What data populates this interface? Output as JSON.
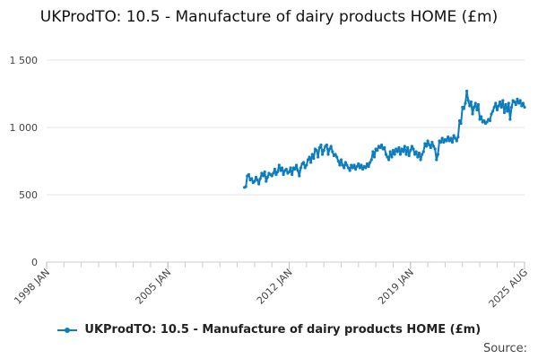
{
  "chart_data": {
    "type": "line",
    "title": "UKProdTO: 10.5 - Manufacture of dairy products HOME (£m)",
    "xlabel": "",
    "ylabel": "",
    "ylim": [
      0,
      1500
    ],
    "yticks": [
      0,
      500,
      1000,
      1500
    ],
    "ytick_labels": [
      "0",
      "500",
      "1 000",
      "1 500"
    ],
    "xlim": [
      "1998-01",
      "2025-08"
    ],
    "xtick_labels": [
      "1998 JAN",
      "2005 JAN",
      "2012 JAN",
      "2019 JAN",
      "2025 AUG"
    ],
    "grid": "horizontal",
    "legend_position": "bottom",
    "color": "#0d7dbd",
    "series": [
      {
        "name": "UKProdTO: 10.5 - Manufacture of dairy products HOME (£m)",
        "points": [
          [
            "2009-06",
            555
          ],
          [
            "2009-07",
            560
          ],
          [
            "2009-08",
            640
          ],
          [
            "2009-09",
            650
          ],
          [
            "2009-10",
            610
          ],
          [
            "2009-11",
            620
          ],
          [
            "2009-12",
            590
          ],
          [
            "2010-01",
            600
          ],
          [
            "2010-02",
            630
          ],
          [
            "2010-03",
            610
          ],
          [
            "2010-04",
            580
          ],
          [
            "2010-05",
            620
          ],
          [
            "2010-06",
            660
          ],
          [
            "2010-07",
            640
          ],
          [
            "2010-08",
            670
          ],
          [
            "2010-09",
            600
          ],
          [
            "2010-10",
            630
          ],
          [
            "2010-11",
            660
          ],
          [
            "2010-12",
            650
          ],
          [
            "2011-01",
            640
          ],
          [
            "2011-02",
            660
          ],
          [
            "2011-03",
            690
          ],
          [
            "2011-04",
            650
          ],
          [
            "2011-05",
            670
          ],
          [
            "2011-06",
            720
          ],
          [
            "2011-07",
            680
          ],
          [
            "2011-08",
            700
          ],
          [
            "2011-09",
            650
          ],
          [
            "2011-10",
            680
          ],
          [
            "2011-11",
            690
          ],
          [
            "2011-12",
            660
          ],
          [
            "2012-01",
            670
          ],
          [
            "2012-02",
            700
          ],
          [
            "2012-03",
            650
          ],
          [
            "2012-04",
            700
          ],
          [
            "2012-05",
            690
          ],
          [
            "2012-06",
            720
          ],
          [
            "2012-07",
            680
          ],
          [
            "2012-08",
            640
          ],
          [
            "2012-09",
            700
          ],
          [
            "2012-10",
            730
          ],
          [
            "2012-11",
            740
          ],
          [
            "2012-12",
            700
          ],
          [
            "2013-01",
            720
          ],
          [
            "2013-02",
            760
          ],
          [
            "2013-03",
            780
          ],
          [
            "2013-04",
            740
          ],
          [
            "2013-05",
            800
          ],
          [
            "2013-06",
            770
          ],
          [
            "2013-07",
            840
          ],
          [
            "2013-08",
            830
          ],
          [
            "2013-09",
            780
          ],
          [
            "2013-10",
            850
          ],
          [
            "2013-11",
            870
          ],
          [
            "2013-12",
            800
          ],
          [
            "2014-01",
            830
          ],
          [
            "2014-02",
            860
          ],
          [
            "2014-03",
            870
          ],
          [
            "2014-04",
            800
          ],
          [
            "2014-05",
            840
          ],
          [
            "2014-06",
            860
          ],
          [
            "2014-07",
            820
          ],
          [
            "2014-08",
            790
          ],
          [
            "2014-09",
            800
          ],
          [
            "2014-10",
            780
          ],
          [
            "2014-11",
            750
          ],
          [
            "2014-12",
            720
          ],
          [
            "2015-01",
            760
          ],
          [
            "2015-02",
            720
          ],
          [
            "2015-03",
            700
          ],
          [
            "2015-04",
            740
          ],
          [
            "2015-05",
            720
          ],
          [
            "2015-06",
            700
          ],
          [
            "2015-07",
            680
          ],
          [
            "2015-08",
            720
          ],
          [
            "2015-09",
            700
          ],
          [
            "2015-10",
            720
          ],
          [
            "2015-11",
            690
          ],
          [
            "2015-12",
            710
          ],
          [
            "2016-01",
            730
          ],
          [
            "2016-02",
            700
          ],
          [
            "2016-03",
            720
          ],
          [
            "2016-04",
            690
          ],
          [
            "2016-05",
            710
          ],
          [
            "2016-06",
            700
          ],
          [
            "2016-07",
            730
          ],
          [
            "2016-08",
            710
          ],
          [
            "2016-09",
            740
          ],
          [
            "2016-10",
            760
          ],
          [
            "2016-11",
            820
          ],
          [
            "2016-12",
            780
          ],
          [
            "2017-01",
            840
          ],
          [
            "2017-02",
            830
          ],
          [
            "2017-03",
            860
          ],
          [
            "2017-04",
            850
          ],
          [
            "2017-05",
            870
          ],
          [
            "2017-06",
            840
          ],
          [
            "2017-07",
            850
          ],
          [
            "2017-08",
            800
          ],
          [
            "2017-09",
            780
          ],
          [
            "2017-10",
            760
          ],
          [
            "2017-11",
            820
          ],
          [
            "2017-12",
            780
          ],
          [
            "2018-01",
            830
          ],
          [
            "2018-02",
            800
          ],
          [
            "2018-03",
            840
          ],
          [
            "2018-04",
            820
          ],
          [
            "2018-05",
            850
          ],
          [
            "2018-06",
            800
          ],
          [
            "2018-07",
            840
          ],
          [
            "2018-08",
            820
          ],
          [
            "2018-09",
            860
          ],
          [
            "2018-10",
            800
          ],
          [
            "2018-11",
            850
          ],
          [
            "2018-12",
            790
          ],
          [
            "2019-01",
            830
          ],
          [
            "2019-02",
            860
          ],
          [
            "2019-03",
            840
          ],
          [
            "2019-04",
            800
          ],
          [
            "2019-05",
            820
          ],
          [
            "2019-06",
            780
          ],
          [
            "2019-07",
            810
          ],
          [
            "2019-08",
            760
          ],
          [
            "2019-09",
            800
          ],
          [
            "2019-10",
            820
          ],
          [
            "2019-11",
            880
          ],
          [
            "2019-12",
            860
          ],
          [
            "2020-01",
            900
          ],
          [
            "2020-02",
            870
          ],
          [
            "2020-03",
            850
          ],
          [
            "2020-04",
            890
          ],
          [
            "2020-05",
            860
          ],
          [
            "2020-06",
            840
          ],
          [
            "2020-07",
            760
          ],
          [
            "2020-08",
            800
          ],
          [
            "2020-09",
            900
          ],
          [
            "2020-10",
            890
          ],
          [
            "2020-11",
            920
          ],
          [
            "2020-12",
            890
          ],
          [
            "2021-01",
            910
          ],
          [
            "2021-02",
            900
          ],
          [
            "2021-03",
            930
          ],
          [
            "2021-04",
            900
          ],
          [
            "2021-05",
            920
          ],
          [
            "2021-06",
            890
          ],
          [
            "2021-07",
            940
          ],
          [
            "2021-08",
            920
          ],
          [
            "2021-09",
            900
          ],
          [
            "2021-10",
            930
          ],
          [
            "2021-11",
            1050
          ],
          [
            "2021-12",
            1030
          ],
          [
            "2022-01",
            1150
          ],
          [
            "2022-02",
            1140
          ],
          [
            "2022-03",
            1180
          ],
          [
            "2022-04",
            1270
          ],
          [
            "2022-05",
            1200
          ],
          [
            "2022-06",
            1160
          ],
          [
            "2022-07",
            1190
          ],
          [
            "2022-08",
            1100
          ],
          [
            "2022-09",
            1150
          ],
          [
            "2022-10",
            1180
          ],
          [
            "2022-11",
            1130
          ],
          [
            "2022-12",
            1170
          ],
          [
            "2023-01",
            1060
          ],
          [
            "2023-02",
            1080
          ],
          [
            "2023-03",
            1040
          ],
          [
            "2023-04",
            1050
          ],
          [
            "2023-05",
            1030
          ],
          [
            "2023-06",
            1040
          ],
          [
            "2023-07",
            1060
          ],
          [
            "2023-08",
            1050
          ],
          [
            "2023-09",
            1100
          ],
          [
            "2023-10",
            1120
          ],
          [
            "2023-11",
            1150
          ],
          [
            "2023-12",
            1180
          ],
          [
            "2024-01",
            1130
          ],
          [
            "2024-02",
            1160
          ],
          [
            "2024-03",
            1190
          ],
          [
            "2024-04",
            1150
          ],
          [
            "2024-05",
            1200
          ],
          [
            "2024-06",
            1110
          ],
          [
            "2024-07",
            1170
          ],
          [
            "2024-08",
            1120
          ],
          [
            "2024-09",
            1180
          ],
          [
            "2024-10",
            1060
          ],
          [
            "2024-11",
            1150
          ],
          [
            "2024-12",
            1200
          ],
          [
            "2025-01",
            1190
          ],
          [
            "2025-02",
            1170
          ],
          [
            "2025-03",
            1210
          ],
          [
            "2025-04",
            1180
          ],
          [
            "2025-05",
            1200
          ],
          [
            "2025-06",
            1160
          ],
          [
            "2025-07",
            1180
          ],
          [
            "2025-08",
            1150
          ]
        ]
      }
    ]
  },
  "legend": {
    "label": "UKProdTO: 10.5 - Manufacture of dairy products HOME (£m)"
  },
  "source": {
    "label": "Source:"
  }
}
